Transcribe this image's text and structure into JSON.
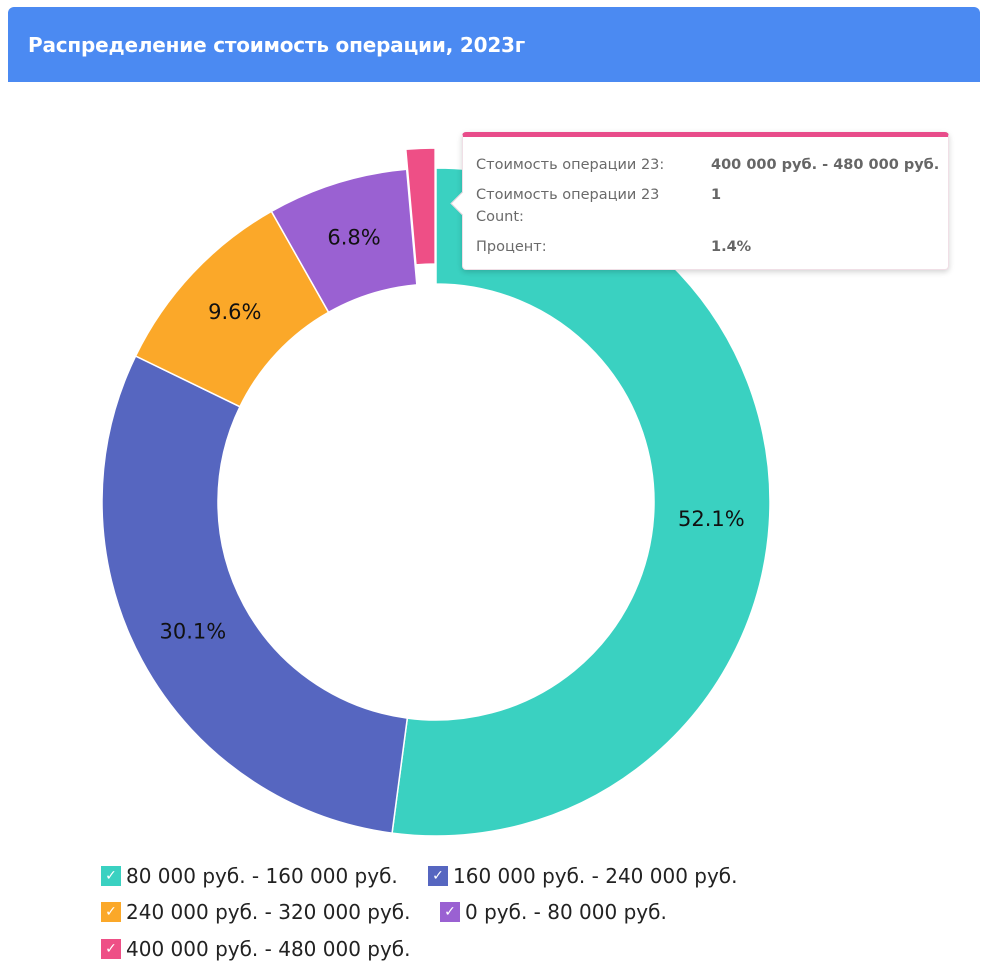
{
  "header": {
    "title": "Распределение стоимость операции, 2023г"
  },
  "colors": {
    "header_bg": "#4b8af2",
    "tooltip_accent": "#e84c8a"
  },
  "chart_data": {
    "type": "pie",
    "variant": "donut",
    "title": "Распределение стоимость операции, 2023г",
    "categories": [
      "80 000 руб. - 160 000 руб.",
      "160 000 руб. - 240 000 руб.",
      "240 000 руб. - 320 000 руб.",
      "0 руб. - 80 000 руб.",
      "400 000 руб. - 480 000 руб."
    ],
    "values": [
      52.1,
      30.1,
      9.6,
      6.8,
      1.4
    ],
    "labels": [
      "52.1%",
      "30.1%",
      "9.6%",
      "6.8%",
      ""
    ],
    "colors": [
      "#3ad1c1",
      "#5666c0",
      "#fba829",
      "#9a61d2",
      "#ee4f86"
    ],
    "exploded_index": 4,
    "legend_position": "bottom",
    "legend_check_icon": "checkmark-icon"
  },
  "tooltip": {
    "rows": [
      {
        "label": "Стоимость операции 23:",
        "value": "400 000 руб. - 480 000 руб."
      },
      {
        "label": "Стоимость операции 23 Count:",
        "value": "1"
      },
      {
        "label": "Процент:",
        "value": "1.4%"
      }
    ]
  }
}
